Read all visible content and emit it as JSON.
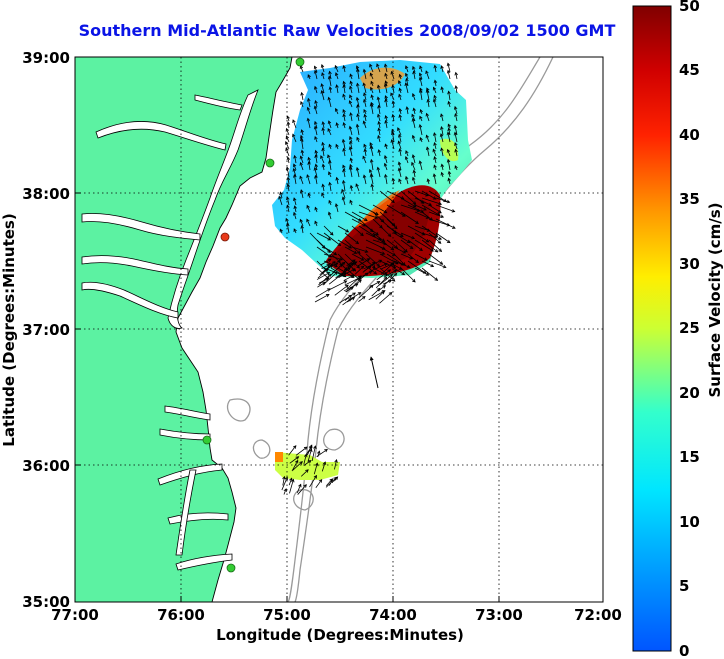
{
  "title": "Southern Mid-Atlantic Raw Velocities 2008/09/02 1500 GMT",
  "axes": {
    "xlabel": "Longitude (Degrees:Minutes)",
    "ylabel": "Latitude (Degrees:Minutes)",
    "x_ticks": [
      "77:00",
      "76:00",
      "75:00",
      "74:00",
      "73:00",
      "72:00"
    ],
    "y_ticks": [
      "39:00",
      "38:00",
      "37:00",
      "36:00",
      "35:00"
    ],
    "grid": "dotted"
  },
  "colorbar": {
    "label": "Surface Velocity (cm/s)",
    "ticks": [
      "50",
      "45",
      "40",
      "35",
      "30",
      "25",
      "20",
      "15",
      "10",
      "5",
      "0"
    ],
    "min": 0,
    "max": 50,
    "colormap": "jet"
  },
  "colors": {
    "title": "#0a14e6",
    "land": "#5cf2a2",
    "ocean": "#ffffff",
    "bathymetry": "#9a9a9a",
    "coastline": "#000000",
    "station_on": "#33cc33",
    "station_off": "#e83a1a"
  }
}
